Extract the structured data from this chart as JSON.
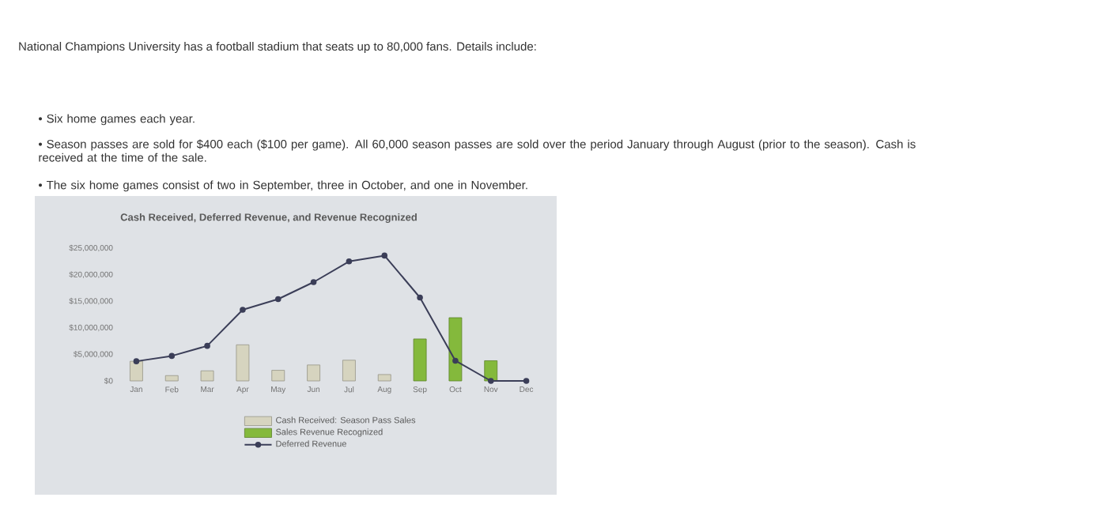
{
  "chart_data": {
    "type": "bar",
    "title": "Cash Received, Deferred Revenue, and Revenue Recognized",
    "annotations": [
      "National Champions University has a football stadium that seats up to 80,000 fans. Details include:",
      "• Six home games each year.",
      "• Season passes are sold for $400 each ($100 per game). All 60,000 season passes are sold over the period January through August (prior to the season). Cash is received at the time of the sale.",
      "• The six home games consist of two in September, three in October, and one in November."
    ],
    "categories": [
      "Jan",
      "Feb",
      "Mar",
      "Apr",
      "May",
      "Jun",
      "Jul",
      "Aug",
      "Sep",
      "Oct",
      "Nov",
      "Dec"
    ],
    "series": [
      {
        "name": "Cash Received: Season Pass Sales",
        "color": "#d6d4bf",
        "values": [
          3700000,
          1000000,
          1900000,
          6800000,
          2000000,
          3000000,
          3900000,
          1200000,
          null,
          null,
          null,
          null
        ]
      },
      {
        "name": "Sales Revenue Recognized",
        "color": "#84b93c",
        "values": [
          null,
          null,
          null,
          null,
          null,
          null,
          null,
          null,
          7900000,
          11900000,
          3800000,
          null
        ]
      },
      {
        "name": "Deferred Revenue",
        "type": "line",
        "color": "#3b3e58",
        "values": [
          3700000,
          4700000,
          6600000,
          13400000,
          15400000,
          18600000,
          22500000,
          23600000,
          15700000,
          3800000,
          0,
          0
        ]
      }
    ],
    "ylim": [
      0,
      25000000
    ],
    "yticks": [
      {
        "value": 0,
        "label": "$0"
      },
      {
        "value": 5000000,
        "label": "$5,000,000"
      },
      {
        "value": 10000000,
        "label": "$10,000,000"
      },
      {
        "value": 15000000,
        "label": "$15,000,000"
      },
      {
        "value": 20000000,
        "label": "$20,000,000"
      },
      {
        "value": 25000000,
        "label": "$25,000,000"
      }
    ],
    "legend": "bottom",
    "marker": "circle"
  }
}
